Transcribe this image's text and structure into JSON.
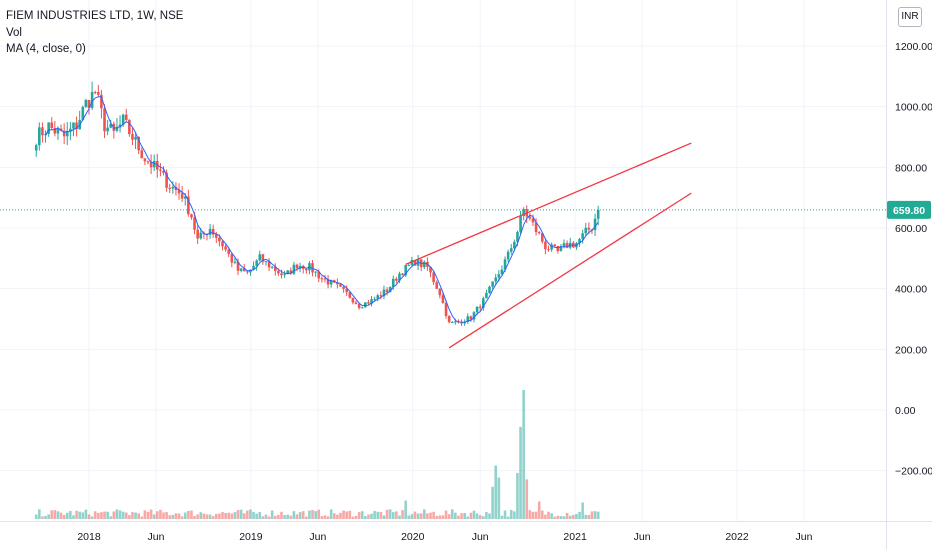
{
  "legend": {
    "symbol_line": "FIEM INDUSTRIES LTD, 1W, NSE",
    "volume_label": "Vol",
    "ma_label": "MA (4, close, 0)"
  },
  "currency": "INR",
  "colors": {
    "up": "#26a69a",
    "down": "#ef5350",
    "ma": "#2962ff",
    "trendline": "#f23645",
    "last_price_badge": "#22ab94",
    "grid": "#f0f3fa"
  },
  "chart_data": {
    "type": "candlestick",
    "x_tick_labels": [
      "2018",
      "Jun",
      "2019",
      "Jun",
      "2020",
      "Jun",
      "2021",
      "Jun",
      "2022",
      "Jun"
    ],
    "x_tick_dates": [
      "2018-01-01",
      "2018-06-01",
      "2019-01-01",
      "2019-06-01",
      "2020-01-01",
      "2020-06-01",
      "2021-01-01",
      "2021-06-01",
      "2022-01-01",
      "2022-06-01"
    ],
    "y_tick_labels": [
      "1200.00",
      "1000.00",
      "800.00",
      "600.00",
      "400.00",
      "200.00",
      "0.00",
      "−200.00"
    ],
    "y_ticks": [
      1200,
      1000,
      800,
      600,
      400,
      200,
      0,
      -200
    ],
    "ylim": [
      -340,
      1270
    ],
    "last_price": "659.80",
    "last_price_value": 659.8,
    "price_path": [
      [
        "2017-09-04",
        900
      ],
      [
        "2017-10-02",
        935
      ],
      [
        "2017-11-06",
        900
      ],
      [
        "2017-12-04",
        940
      ],
      [
        "2017-12-25",
        1010
      ],
      [
        "2018-01-15",
        1050
      ],
      [
        "2018-02-05",
        940
      ],
      [
        "2018-02-26",
        910
      ],
      [
        "2018-03-19",
        950
      ],
      [
        "2018-04-09",
        900
      ],
      [
        "2018-05-07",
        830
      ],
      [
        "2018-06-04",
        790
      ],
      [
        "2018-07-02",
        740
      ],
      [
        "2018-07-30",
        710
      ],
      [
        "2018-08-20",
        640
      ],
      [
        "2018-09-03",
        560
      ],
      [
        "2018-10-01",
        600
      ],
      [
        "2018-10-29",
        545
      ],
      [
        "2018-12-03",
        460
      ],
      [
        "2018-12-24",
        450
      ],
      [
        "2019-01-21",
        500
      ],
      [
        "2019-02-18",
        470
      ],
      [
        "2019-03-18",
        440
      ],
      [
        "2019-04-15",
        480
      ],
      [
        "2019-05-13",
        470
      ],
      [
        "2019-06-10",
        435
      ],
      [
        "2019-07-15",
        405
      ],
      [
        "2019-08-12",
        375
      ],
      [
        "2019-09-02",
        345
      ],
      [
        "2019-09-30",
        360
      ],
      [
        "2019-11-04",
        395
      ],
      [
        "2019-12-02",
        450
      ],
      [
        "2020-01-06",
        490
      ],
      [
        "2020-02-03",
        470
      ],
      [
        "2020-03-02",
        385
      ],
      [
        "2020-03-23",
        285
      ],
      [
        "2020-04-13",
        290
      ],
      [
        "2020-05-11",
        305
      ],
      [
        "2020-06-08",
        360
      ],
      [
        "2020-07-06",
        430
      ],
      [
        "2020-08-03",
        510
      ],
      [
        "2020-08-24",
        590
      ],
      [
        "2020-09-07",
        660
      ],
      [
        "2020-09-28",
        610
      ],
      [
        "2020-10-26",
        540
      ],
      [
        "2020-11-23",
        520
      ],
      [
        "2020-12-14",
        545
      ],
      [
        "2021-01-04",
        550
      ],
      [
        "2021-01-25",
        585
      ],
      [
        "2021-02-08",
        605
      ],
      [
        "2021-02-22",
        659.8
      ]
    ],
    "volume_series": [
      [
        "2020-08-31",
        1000
      ],
      [
        "2020-09-07",
        1400
      ],
      [
        "2020-07-06",
        580
      ],
      [
        "2020-08-24",
        500
      ],
      [
        "2020-07-13",
        450
      ],
      [
        "2020-09-14",
        430
      ],
      [
        "2020-06-29",
        350
      ],
      [
        "2019-12-16",
        200
      ],
      [
        "2021-01-18",
        180
      ],
      [
        "2020-10-12",
        190
      ]
    ],
    "trendlines": [
      {
        "from": [
          "2019-12-16",
          480
        ],
        "to": [
          "2021-09-20",
          880
        ]
      },
      {
        "from": [
          "2020-03-23",
          205
        ],
        "to": [
          "2021-09-20",
          715
        ]
      }
    ]
  }
}
